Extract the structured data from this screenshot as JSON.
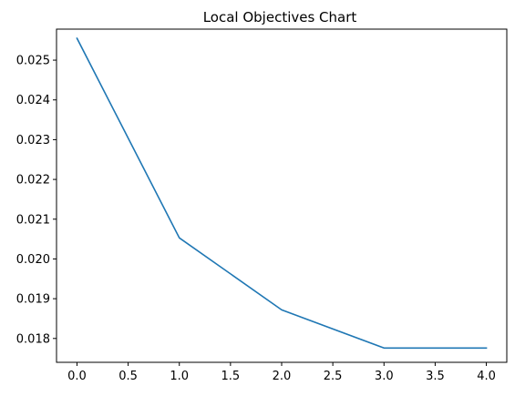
{
  "chart_data": {
    "type": "line",
    "title": "Local Objectives Chart",
    "xlabel": "",
    "ylabel": "",
    "xlim": [
      -0.2,
      4.2
    ],
    "ylim": [
      0.0174,
      0.02578
    ],
    "xticks": [
      0.0,
      0.5,
      1.0,
      1.5,
      2.0,
      2.5,
      3.0,
      3.5,
      4.0
    ],
    "xtick_labels": [
      "0.0",
      "0.5",
      "1.0",
      "1.5",
      "2.0",
      "2.5",
      "3.0",
      "3.5",
      "4.0"
    ],
    "yticks": [
      0.018,
      0.019,
      0.02,
      0.021,
      0.022,
      0.023,
      0.024,
      0.025
    ],
    "ytick_labels": [
      "0.018",
      "0.019",
      "0.020",
      "0.021",
      "0.022",
      "0.023",
      "0.024",
      "0.025"
    ],
    "grid": false,
    "series": [
      {
        "x": [
          0,
          1,
          2,
          3,
          4
        ],
        "y": [
          0.02555,
          0.02053,
          0.01872,
          0.01776,
          0.01776
        ],
        "color": "#1f77b4"
      }
    ]
  }
}
